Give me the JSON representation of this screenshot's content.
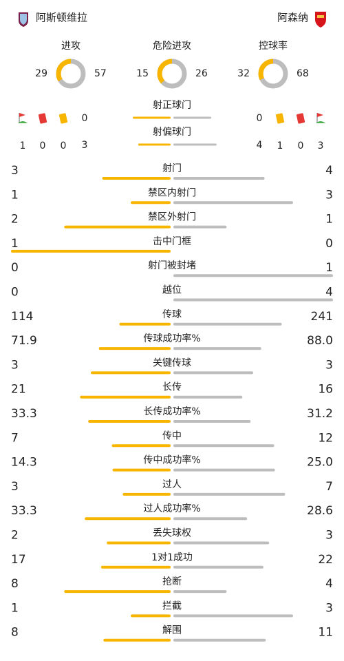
{
  "header": {
    "home": "阿斯顿维拉",
    "away": "阿森纳"
  },
  "summary": [
    {
      "label": "进攻",
      "home": 29,
      "away": 57
    },
    {
      "label": "危险进攻",
      "home": 15,
      "away": 26
    },
    {
      "label": "控球率",
      "home": 32,
      "away": 68
    }
  ],
  "extras": {
    "home": {
      "corners": 1,
      "red_cards": 0,
      "yellow_cards": 0
    },
    "away": {
      "yellow_cards": 1,
      "red_cards": 0,
      "corners": 3
    }
  },
  "top_stats": [
    {
      "label": "射正球门",
      "home": 0,
      "away": 0
    },
    {
      "label": "射偏球门",
      "home": 3,
      "away": 4
    }
  ],
  "stats": [
    {
      "label": "射门",
      "home": 3,
      "away": 4
    },
    {
      "label": "禁区内射门",
      "home": 1,
      "away": 3
    },
    {
      "label": "禁区外射门",
      "home": 2,
      "away": 1
    },
    {
      "label": "击中门框",
      "home": 1,
      "away": 0
    },
    {
      "label": "射门被封堵",
      "home": 0,
      "away": 1
    },
    {
      "label": "越位",
      "home": 0,
      "away": 4
    },
    {
      "label": "传球",
      "home": 114,
      "away": 241
    },
    {
      "label": "传球成功率%",
      "home": 71.9,
      "away": 88,
      "away_label": "88.0"
    },
    {
      "label": "关键传球",
      "home": 3,
      "away": 3
    },
    {
      "label": "长传",
      "home": 21,
      "away": 16
    },
    {
      "label": "长传成功率%",
      "home": 33.3,
      "away": 31.2
    },
    {
      "label": "传中",
      "home": 7,
      "away": 12
    },
    {
      "label": "传中成功率%",
      "home": 14.3,
      "away": 25,
      "away_label": "25.0"
    },
    {
      "label": "过人",
      "home": 3,
      "away": 7
    },
    {
      "label": "过人成功率%",
      "home": 33.3,
      "away": 28.6
    },
    {
      "label": "丢失球权",
      "home": 2,
      "away": 3
    },
    {
      "label": "1对1成功",
      "home": 17,
      "away": 22
    },
    {
      "label": "抢断",
      "home": 8,
      "away": 4
    },
    {
      "label": "拦截",
      "home": 1,
      "away": 3
    },
    {
      "label": "解围",
      "home": 8,
      "away": 11
    }
  ]
}
